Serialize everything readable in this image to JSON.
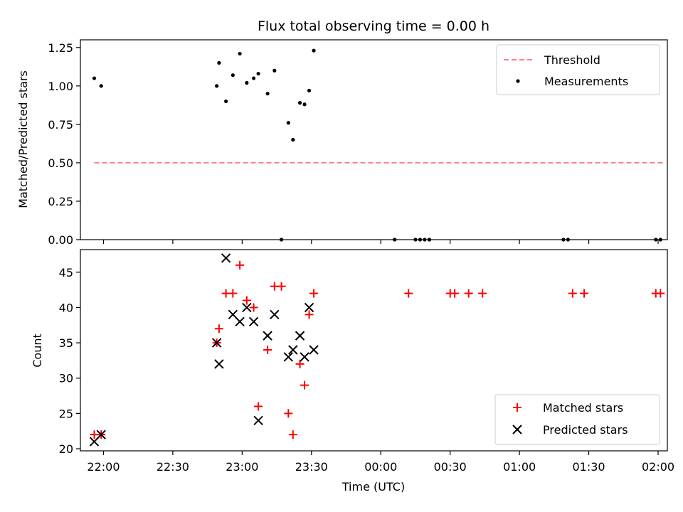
{
  "chart_data": {
    "type": "scatter",
    "title": "Flux total observing time = 0.00 h",
    "colors": {
      "threshold": "#ff7f7f",
      "measurements": "#000000",
      "matched": "#ff0000",
      "predicted": "#000000"
    },
    "x_axis": {
      "label": "Time (UTC)",
      "range": [
        "21:50",
        "02:04"
      ],
      "ticks": [
        "22:00",
        "22:30",
        "23:00",
        "23:30",
        "00:00",
        "00:30",
        "01:00",
        "01:30",
        "02:00"
      ]
    },
    "top": {
      "ylabel": "Matched/Predicted stars",
      "ylim": [
        0,
        1.3
      ],
      "yticks": [
        "0.00",
        "0.25",
        "0.50",
        "0.75",
        "1.00",
        "1.25"
      ],
      "legend_position": "top-right",
      "threshold": {
        "name": "Threshold",
        "value": 0.5,
        "x_range": [
          "21:56",
          "02:02"
        ]
      },
      "measurements": {
        "name": "Measurements",
        "points": [
          [
            "21:56",
            1.05
          ],
          [
            "21:59",
            1.0
          ],
          [
            "22:49",
            1.0
          ],
          [
            "22:50",
            1.15
          ],
          [
            "22:53",
            0.9
          ],
          [
            "22:56",
            1.07
          ],
          [
            "22:59",
            1.21
          ],
          [
            "23:02",
            1.02
          ],
          [
            "23:05",
            1.05
          ],
          [
            "23:07",
            1.08
          ],
          [
            "23:11",
            0.95
          ],
          [
            "23:14",
            1.1
          ],
          [
            "23:17",
            0.0
          ],
          [
            "23:20",
            0.76
          ],
          [
            "23:22",
            0.65
          ],
          [
            "23:25",
            0.89
          ],
          [
            "23:27",
            0.88
          ],
          [
            "23:29",
            0.97
          ],
          [
            "23:31",
            1.23
          ],
          [
            "00:06",
            0.0
          ],
          [
            "00:15",
            0.0
          ],
          [
            "00:17",
            0.0
          ],
          [
            "00:19",
            0.0
          ],
          [
            "00:21",
            0.0
          ],
          [
            "01:19",
            0.0
          ],
          [
            "01:21",
            0.0
          ],
          [
            "01:59",
            0.0
          ],
          [
            "02:01",
            0.0
          ]
        ]
      }
    },
    "bottom": {
      "ylabel": "Count",
      "ylim": [
        19.7,
        48.2
      ],
      "yticks": [
        "20",
        "25",
        "30",
        "35",
        "40",
        "45"
      ],
      "legend_position": "bottom-right",
      "series": [
        {
          "name": "Matched stars",
          "marker": "plus",
          "points": [
            [
              "21:56",
              22
            ],
            [
              "21:59",
              22
            ],
            [
              "22:49",
              35
            ],
            [
              "22:50",
              37
            ],
            [
              "22:53",
              42
            ],
            [
              "22:56",
              42
            ],
            [
              "22:59",
              46
            ],
            [
              "23:02",
              41
            ],
            [
              "23:05",
              40
            ],
            [
              "23:07",
              26
            ],
            [
              "23:11",
              34
            ],
            [
              "23:14",
              43
            ],
            [
              "23:17",
              43
            ],
            [
              "23:20",
              25
            ],
            [
              "23:22",
              22
            ],
            [
              "23:25",
              32
            ],
            [
              "23:27",
              29
            ],
            [
              "23:29",
              39
            ],
            [
              "23:31",
              42
            ],
            [
              "00:12",
              42
            ],
            [
              "00:30",
              42
            ],
            [
              "00:32",
              42
            ],
            [
              "00:38",
              42
            ],
            [
              "00:44",
              42
            ],
            [
              "01:23",
              42
            ],
            [
              "01:28",
              42
            ],
            [
              "01:59",
              42
            ],
            [
              "02:01",
              42
            ]
          ]
        },
        {
          "name": "Predicted stars",
          "marker": "x",
          "points": [
            [
              "21:56",
              21
            ],
            [
              "21:59",
              22
            ],
            [
              "22:49",
              35
            ],
            [
              "22:50",
              32
            ],
            [
              "22:53",
              47
            ],
            [
              "22:56",
              39
            ],
            [
              "22:59",
              38
            ],
            [
              "23:02",
              40
            ],
            [
              "23:05",
              38
            ],
            [
              "23:07",
              24
            ],
            [
              "23:11",
              36
            ],
            [
              "23:14",
              39
            ],
            [
              "23:20",
              33
            ],
            [
              "23:22",
              34
            ],
            [
              "23:25",
              36
            ],
            [
              "23:27",
              33
            ],
            [
              "23:29",
              40
            ],
            [
              "23:31",
              34
            ]
          ]
        }
      ]
    }
  }
}
